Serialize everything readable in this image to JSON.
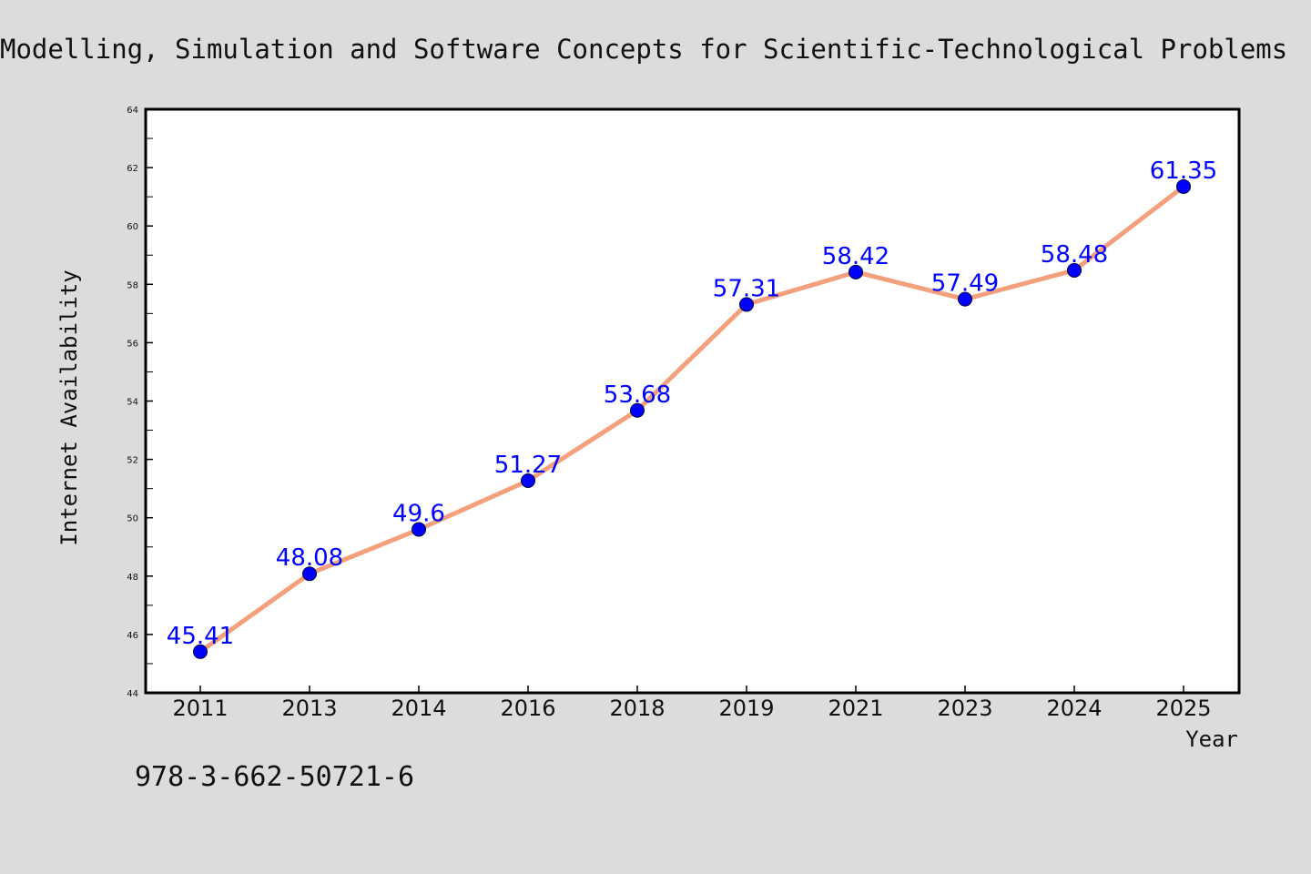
{
  "chart_data": {
    "type": "line",
    "title": "Modelling, Simulation and Software Concepts for Scientific-Technological Problems",
    "xlabel": "Year",
    "ylabel": "Internet Availability",
    "categories": [
      "2011",
      "2013",
      "2014",
      "2016",
      "2018",
      "2019",
      "2021",
      "2023",
      "2024",
      "2025"
    ],
    "series": [
      {
        "values": [
          45.41,
          48.08,
          49.6,
          51.27,
          53.68,
          57.31,
          58.42,
          57.49,
          58.48,
          61.35
        ],
        "labels": [
          "45.41",
          "48.08",
          "49.6",
          "51.27",
          "53.68",
          "57.31",
          "58.42",
          "57.49",
          "58.48",
          "61.35"
        ],
        "line_color": "#f4a07c",
        "marker_color": "#0000ff"
      }
    ],
    "ylim": [
      44,
      64
    ],
    "yticks": [
      "44",
      "46",
      "48",
      "50",
      "52",
      "54",
      "56",
      "58",
      "60",
      "62",
      "64"
    ],
    "grid": false,
    "legend": "none"
  },
  "footer": {
    "isbn": "978-3-662-50721-6"
  },
  "colors": {
    "background": "#dcdcdc",
    "plot_background": "#ffffff",
    "line": "#f4a07c",
    "marker": "#0000ff",
    "data_label": "#0000ff"
  }
}
